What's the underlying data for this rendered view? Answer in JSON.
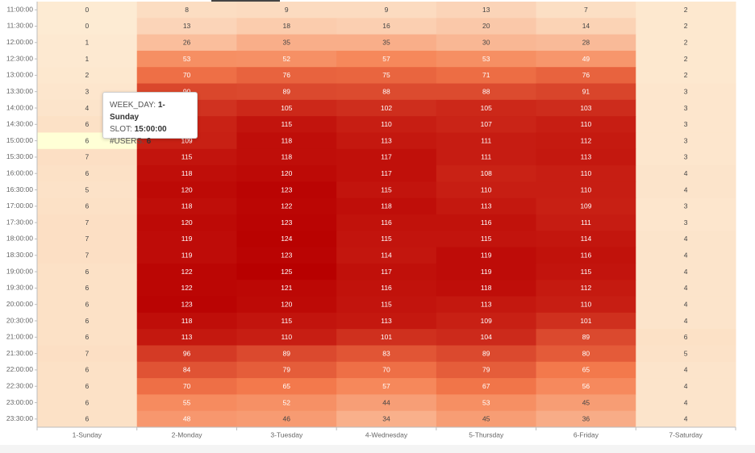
{
  "tooltip": {
    "weekday_label": "WEEK_DAY:",
    "weekday_value": "1-Sunday",
    "slot_label": "SLOT:",
    "slot_value": "15:00:00",
    "users_label": "#USERS:",
    "users_value": "6"
  },
  "chart_data": {
    "type": "heatmap",
    "x": [
      "1-Sunday",
      "2-Monday",
      "3-Tuesday",
      "4-Wednesday",
      "5-Thursday",
      "6-Friday",
      "7-Saturday"
    ],
    "y": [
      "11:00:00",
      "11:30:00",
      "12:00:00",
      "12:30:00",
      "13:00:00",
      "13:30:00",
      "14:00:00",
      "14:30:00",
      "15:00:00",
      "15:30:00",
      "16:00:00",
      "16:30:00",
      "17:00:00",
      "17:30:00",
      "18:00:00",
      "18:30:00",
      "19:00:00",
      "19:30:00",
      "20:00:00",
      "20:30:00",
      "21:00:00",
      "21:30:00",
      "22:00:00",
      "22:30:00",
      "23:00:00",
      "23:30:00"
    ],
    "values": [
      [
        0,
        8,
        9,
        9,
        13,
        7,
        2
      ],
      [
        0,
        13,
        18,
        16,
        20,
        14,
        2
      ],
      [
        1,
        26,
        35,
        35,
        30,
        28,
        2
      ],
      [
        1,
        53,
        52,
        57,
        53,
        49,
        2
      ],
      [
        2,
        70,
        76,
        75,
        71,
        76,
        2
      ],
      [
        3,
        90,
        89,
        88,
        88,
        91,
        3
      ],
      [
        4,
        100,
        105,
        102,
        105,
        103,
        3
      ],
      [
        6,
        108,
        115,
        110,
        107,
        110,
        3
      ],
      [
        6,
        109,
        118,
        113,
        111,
        112,
        3
      ],
      [
        7,
        115,
        118,
        117,
        111,
        113,
        3
      ],
      [
        6,
        118,
        120,
        117,
        108,
        110,
        4
      ],
      [
        5,
        120,
        123,
        115,
        110,
        110,
        4
      ],
      [
        6,
        118,
        122,
        118,
        113,
        109,
        3
      ],
      [
        7,
        120,
        123,
        116,
        116,
        111,
        3
      ],
      [
        7,
        119,
        124,
        115,
        115,
        114,
        4
      ],
      [
        7,
        119,
        123,
        114,
        119,
        116,
        4
      ],
      [
        6,
        122,
        125,
        117,
        119,
        115,
        4
      ],
      [
        6,
        122,
        121,
        116,
        118,
        112,
        4
      ],
      [
        6,
        123,
        120,
        115,
        113,
        110,
        4
      ],
      [
        6,
        118,
        115,
        113,
        109,
        101,
        4
      ],
      [
        6,
        113,
        110,
        101,
        104,
        89,
        6
      ],
      [
        7,
        96,
        89,
        83,
        89,
        80,
        5
      ],
      [
        6,
        84,
        79,
        70,
        79,
        65,
        4
      ],
      [
        6,
        70,
        65,
        57,
        67,
        56,
        4
      ],
      [
        6,
        55,
        52,
        44,
        53,
        45,
        4
      ],
      [
        6,
        48,
        46,
        34,
        45,
        36,
        4
      ]
    ],
    "highlight": {
      "x": "1-Sunday",
      "y": "15:00:00"
    },
    "colors": {
      "low": "#fdebd3",
      "mid": "#f57e4f",
      "high": "#b80000",
      "highlight": "#ffffd6",
      "axis": "#bdbdbd"
    }
  }
}
